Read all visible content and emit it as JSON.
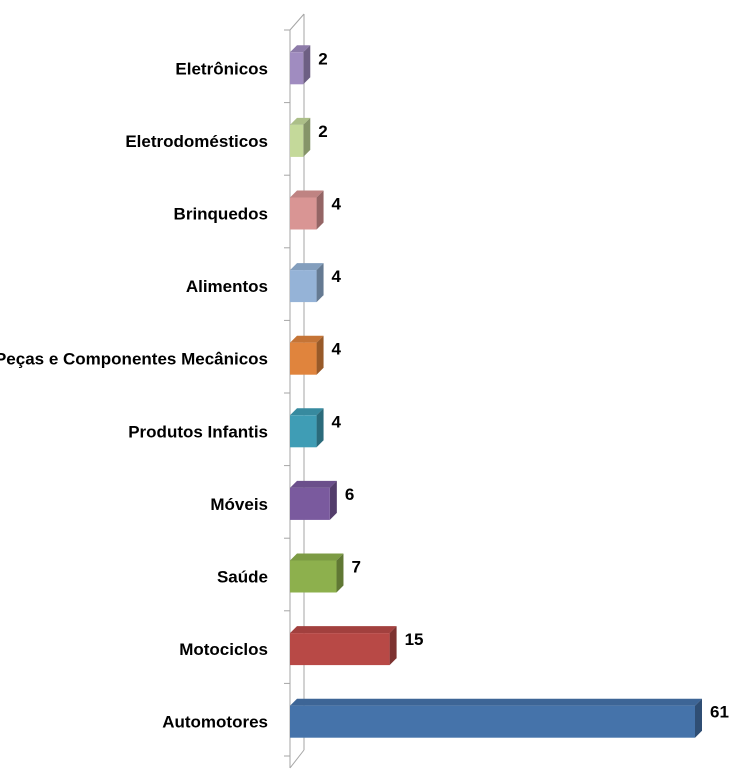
{
  "chart_data": {
    "type": "bar",
    "orientation": "horizontal",
    "style": "3d",
    "title": "",
    "xlabel": "",
    "ylabel": "",
    "categories": [
      "Eletrônicos",
      "Eletrodomésticos",
      "Brinquedos",
      "Alimentos",
      "Peças e Componentes Mecânicos",
      "Produtos Infantis",
      "Móveis",
      "Saúde",
      "Motociclos",
      "Automotores"
    ],
    "values": [
      2,
      2,
      4,
      4,
      4,
      4,
      6,
      7,
      15,
      61
    ],
    "colors": [
      "#a08cc0",
      "#c4d99a",
      "#d99594",
      "#95b3d7",
      "#e0843d",
      "#3f9db5",
      "#7a5a9e",
      "#8db04d",
      "#b84946",
      "#4573aa"
    ],
    "data_labels": true,
    "grid": false,
    "legend": "none"
  }
}
